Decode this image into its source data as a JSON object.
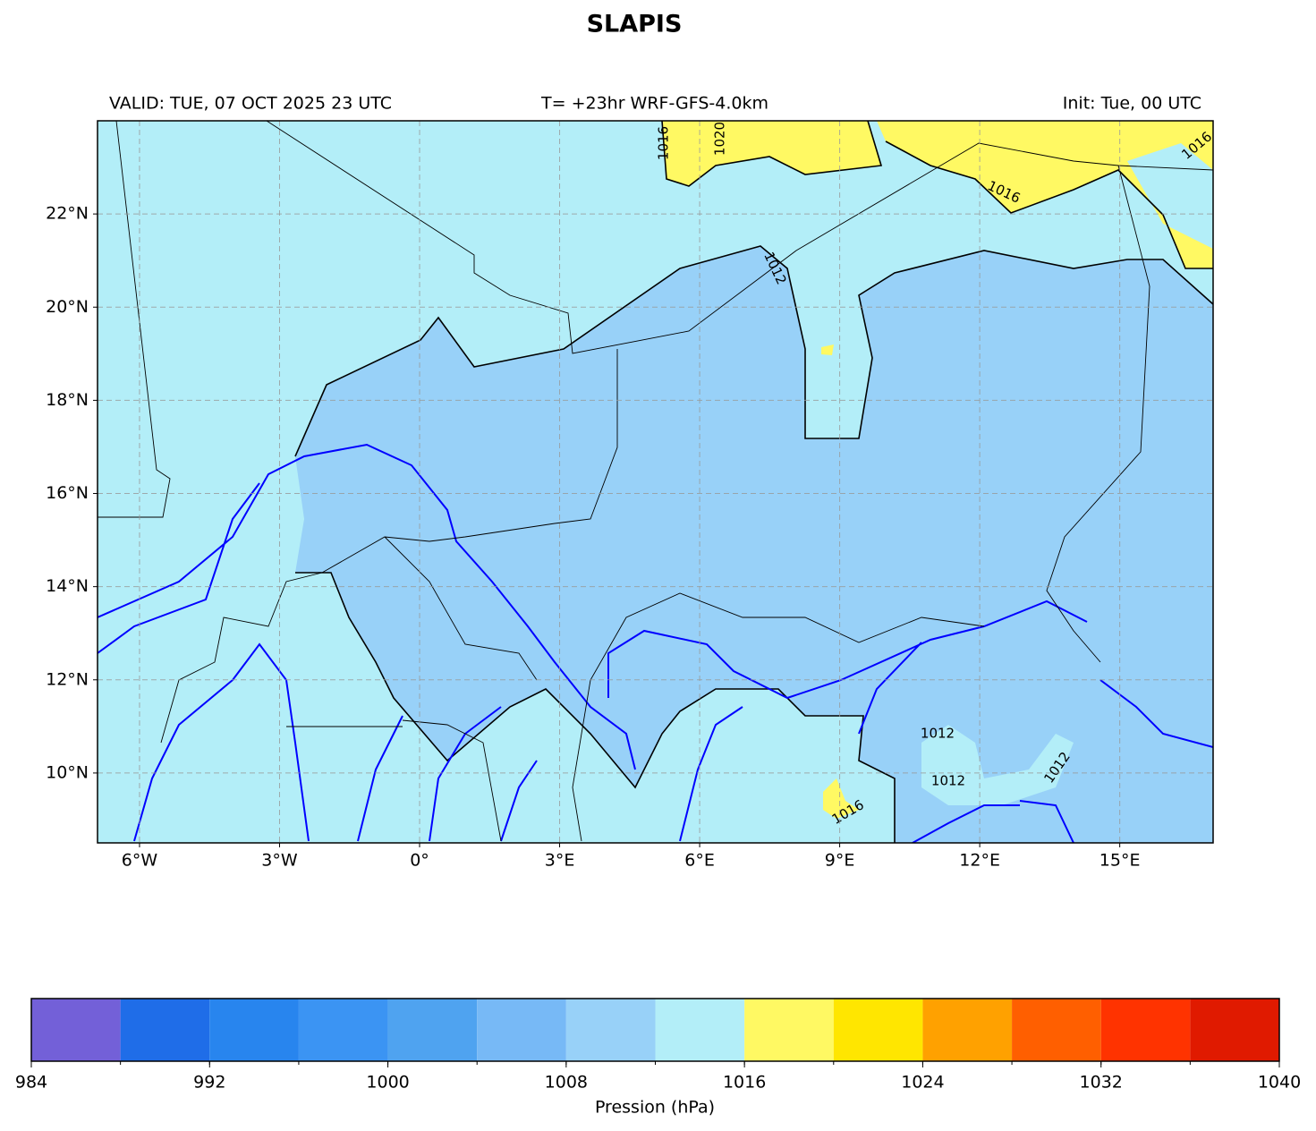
{
  "title": "SLAPIS",
  "header": {
    "valid": "VALID: TUE, 07 OCT 2025 23 UTC",
    "run": "T= +23hr WRF-GFS-4.0km",
    "init": "Init: Tue, 00 UTC"
  },
  "map": {
    "lonlim": [
      -6.9,
      17.0
    ],
    "latlim": [
      8.5,
      24.0
    ],
    "lon_ticks": [
      {
        "value": -6,
        "label": "6°W"
      },
      {
        "value": -3,
        "label": "3°W"
      },
      {
        "value": 0,
        "label": "0°"
      },
      {
        "value": 3,
        "label": "3°E"
      },
      {
        "value": 6,
        "label": "6°E"
      },
      {
        "value": 9,
        "label": "9°E"
      },
      {
        "value": 12,
        "label": "12°E"
      },
      {
        "value": 15,
        "label": "15°E"
      }
    ],
    "lat_ticks": [
      {
        "value": 10,
        "label": "10°N"
      },
      {
        "value": 12,
        "label": "12°N"
      },
      {
        "value": 14,
        "label": "14°N"
      },
      {
        "value": 16,
        "label": "16°N"
      },
      {
        "value": 18,
        "label": "18°N"
      },
      {
        "value": 20,
        "label": "20°N"
      },
      {
        "value": 22,
        "label": "22°N"
      }
    ],
    "contour_labels": [
      1016,
      1020,
      1016,
      1016,
      1012,
      1012,
      1012,
      1012,
      1016
    ]
  },
  "colorbar": {
    "label": "Pression (hPa)",
    "bounds": [
      984,
      988,
      992,
      996,
      1000,
      1004,
      1008,
      1012,
      1016,
      1020,
      1024,
      1028,
      1032,
      1036,
      1040
    ],
    "colors": [
      "#7360d8",
      "#1f6de8",
      "#2885ee",
      "#3b94f3",
      "#4fa3f0",
      "#77b9f6",
      "#98d1f8",
      "#b3eef8",
      "#fff963",
      "#ffe600",
      "#ffa100",
      "#ff5f00",
      "#ff3300",
      "#e01a00"
    ],
    "ticks": [
      984,
      992,
      1000,
      1008,
      1016,
      1024,
      1032,
      1040
    ]
  }
}
